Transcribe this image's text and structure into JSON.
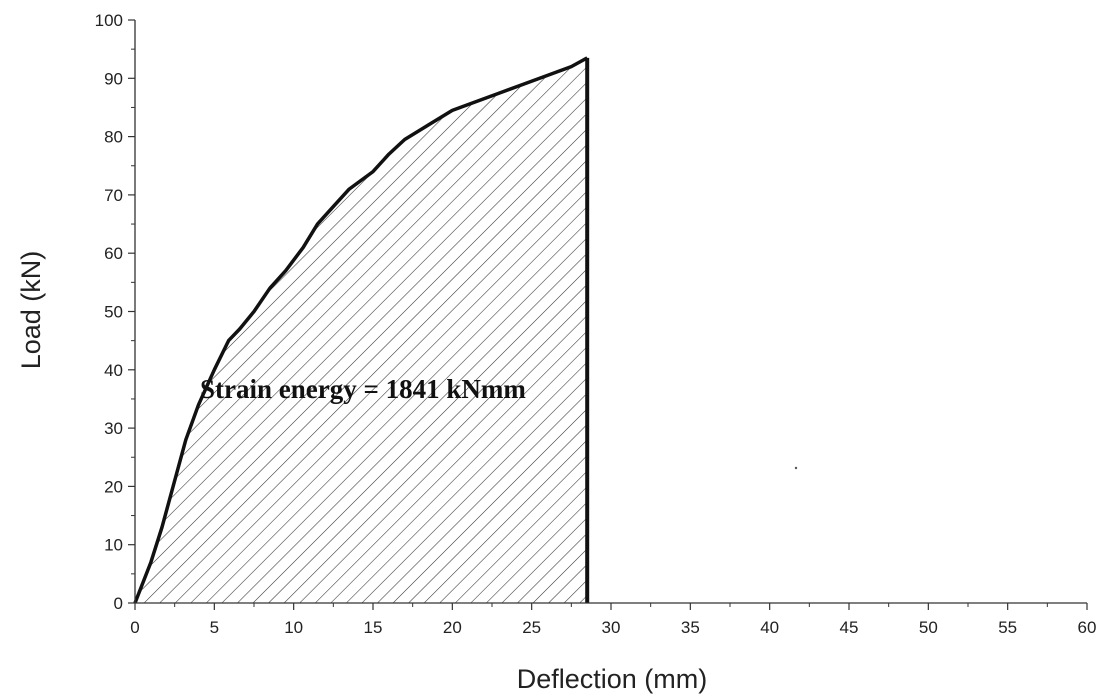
{
  "chart_data": {
    "type": "area",
    "xlabel": "Deflection (mm)",
    "ylabel": "Load (kN)",
    "xlim": [
      0,
      60
    ],
    "ylim": [
      0,
      100
    ],
    "xticks": [
      0,
      5,
      10,
      15,
      20,
      25,
      30,
      35,
      40,
      45,
      50,
      55,
      60
    ],
    "yticks": [
      0,
      10,
      20,
      30,
      40,
      50,
      60,
      70,
      80,
      90,
      100
    ],
    "grid": false,
    "fill_pattern": "diagonal-hatch",
    "annotation": "Strain energy = 1841 kNmm",
    "series": [
      {
        "x": [
          0,
          1,
          1.7,
          2.5,
          3.2,
          4.0,
          5.0,
          5.9,
          6.6,
          7.5,
          8.5,
          9.5,
          10.6,
          11.5,
          12.5,
          13.5,
          15.0,
          16.0,
          17.0,
          18.5,
          20.0,
          21.5,
          23.0,
          24.5,
          26.0,
          27.5,
          28.5
        ],
        "y": [
          0,
          7,
          13,
          21,
          28,
          34,
          40,
          45,
          47,
          50,
          54,
          57,
          61,
          65,
          68,
          71,
          74,
          77,
          79.5,
          82,
          84.5,
          86,
          87.5,
          89,
          90.5,
          92,
          93.5
        ]
      }
    ],
    "drop_line_x": 28.5
  }
}
